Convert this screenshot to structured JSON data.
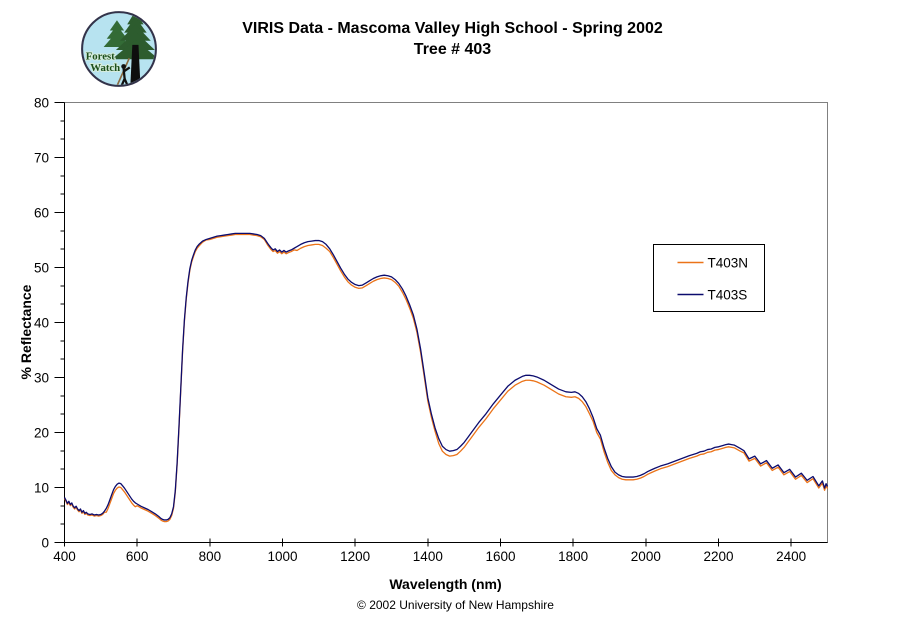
{
  "logo": {
    "line1": "Forest",
    "line2": "Watch"
  },
  "footer": {
    "copyright": "© 2002 University of New Hampshire"
  },
  "chart_data": {
    "type": "line",
    "title": "VIRIS Data - Mascoma Valley High School - Spring 2002",
    "subtitle": "Tree # 403",
    "xlabel": "Wavelength (nm)",
    "ylabel": "% Reflectance",
    "xlim": [
      400,
      2500
    ],
    "ylim": [
      0,
      80
    ],
    "x_ticks": [
      400,
      600,
      800,
      1000,
      1200,
      1400,
      1600,
      1800,
      2000,
      2200,
      2400
    ],
    "y_ticks": [
      0,
      10,
      20,
      30,
      40,
      50,
      60,
      70,
      80
    ],
    "grid": false,
    "legend_position": "middle-right",
    "x": [
      400,
      404,
      408,
      412,
      416,
      420,
      424,
      428,
      432,
      436,
      440,
      444,
      448,
      452,
      456,
      460,
      464,
      470,
      476,
      482,
      488,
      494,
      500,
      505,
      510,
      515,
      520,
      525,
      530,
      535,
      540,
      545,
      550,
      555,
      560,
      565,
      570,
      575,
      580,
      585,
      590,
      595,
      600,
      610,
      620,
      630,
      640,
      650,
      660,
      665,
      670,
      675,
      680,
      685,
      690,
      695,
      700,
      705,
      710,
      715,
      720,
      725,
      730,
      735,
      740,
      745,
      750,
      755,
      760,
      765,
      770,
      780,
      790,
      800,
      810,
      820,
      830,
      840,
      850,
      860,
      870,
      880,
      890,
      900,
      910,
      920,
      930,
      940,
      950,
      960,
      968,
      974,
      980,
      986,
      992,
      998,
      1004,
      1010,
      1016,
      1024,
      1032,
      1040,
      1050,
      1060,
      1070,
      1080,
      1090,
      1100,
      1110,
      1120,
      1130,
      1140,
      1150,
      1160,
      1170,
      1180,
      1190,
      1200,
      1210,
      1220,
      1230,
      1240,
      1250,
      1260,
      1270,
      1280,
      1290,
      1300,
      1310,
      1320,
      1330,
      1340,
      1350,
      1360,
      1370,
      1380,
      1390,
      1400,
      1410,
      1420,
      1430,
      1440,
      1450,
      1460,
      1470,
      1480,
      1490,
      1500,
      1510,
      1520,
      1540,
      1560,
      1580,
      1600,
      1620,
      1640,
      1660,
      1670,
      1680,
      1690,
      1700,
      1720,
      1740,
      1760,
      1780,
      1795,
      1805,
      1815,
      1825,
      1835,
      1845,
      1855,
      1865,
      1875,
      1885,
      1895,
      1905,
      1915,
      1925,
      1935,
      1945,
      1955,
      1965,
      1975,
      1985,
      1995,
      2005,
      2015,
      2025,
      2040,
      2060,
      2080,
      2100,
      2120,
      2140,
      2150,
      2160,
      2170,
      2180,
      2190,
      2200,
      2210,
      2220,
      2228,
      2236,
      2244,
      2252,
      2260,
      2270,
      2284,
      2300,
      2316,
      2332,
      2348,
      2364,
      2380,
      2396,
      2412,
      2428,
      2444,
      2460,
      2476,
      2486,
      2492,
      2496,
      2500
    ],
    "series": [
      {
        "name": "T403N",
        "color": "#EB7318",
        "values": [
          8.0,
          7.5,
          6.9,
          7.3,
          6.7,
          7.0,
          6.4,
          6.1,
          6.4,
          5.9,
          5.6,
          5.9,
          5.3,
          5.6,
          5.1,
          5.3,
          5.0,
          4.9,
          5.0,
          4.8,
          4.9,
          4.8,
          4.9,
          5.1,
          5.5,
          5.5,
          6.2,
          7.1,
          8.0,
          8.9,
          9.5,
          9.9,
          10.1,
          10.0,
          9.6,
          9.2,
          8.7,
          8.2,
          7.7,
          7.2,
          6.8,
          6.5,
          6.7,
          6.3,
          6.0,
          5.7,
          5.3,
          4.9,
          4.4,
          4.1,
          3.9,
          3.8,
          3.8,
          3.9,
          4.2,
          4.9,
          6.2,
          9.2,
          14.2,
          20.7,
          27.7,
          34.7,
          40.2,
          44.2,
          47.2,
          49.5,
          51.0,
          52.0,
          52.9,
          53.5,
          53.9,
          54.6,
          55.0,
          55.1,
          55.3,
          55.5,
          55.6,
          55.7,
          55.8,
          55.9,
          56.0,
          56.0,
          56.0,
          56.0,
          56.0,
          55.9,
          55.8,
          55.6,
          55.1,
          54.0,
          53.3,
          52.9,
          53.1,
          52.6,
          52.9,
          52.5,
          52.8,
          52.5,
          52.7,
          52.9,
          53.2,
          53.1,
          53.5,
          53.8,
          54.0,
          54.1,
          54.2,
          54.2,
          54.0,
          53.5,
          52.9,
          51.8,
          50.6,
          49.4,
          48.3,
          47.4,
          46.8,
          46.4,
          46.2,
          46.3,
          46.7,
          47.1,
          47.5,
          47.8,
          48.0,
          48.1,
          48.0,
          47.8,
          47.3,
          46.6,
          45.5,
          44.2,
          42.6,
          40.8,
          38.2,
          34.6,
          30.2,
          25.7,
          22.7,
          20.2,
          18.0,
          16.6,
          16.0,
          15.7,
          15.8,
          16.0,
          16.6,
          17.3,
          18.2,
          19.1,
          20.9,
          22.5,
          24.3,
          25.9,
          27.5,
          28.6,
          29.3,
          29.5,
          29.5,
          29.4,
          29.2,
          28.6,
          27.8,
          27.0,
          26.5,
          26.4,
          26.5,
          26.2,
          25.6,
          24.7,
          23.4,
          22.0,
          20.0,
          18.8,
          16.5,
          14.6,
          13.1,
          12.3,
          11.8,
          11.5,
          11.4,
          11.4,
          11.4,
          11.5,
          11.7,
          12.0,
          12.4,
          12.7,
          13.0,
          13.4,
          13.8,
          14.3,
          14.8,
          15.3,
          15.7,
          16.0,
          16.1,
          16.4,
          16.5,
          16.8,
          16.9,
          17.1,
          17.3,
          17.4,
          17.3,
          17.2,
          16.9,
          16.6,
          16.3,
          14.8,
          15.3,
          13.9,
          14.5,
          13.1,
          13.7,
          12.3,
          12.9,
          11.5,
          12.2,
          10.9,
          11.6,
          9.9,
          10.8,
          9.5,
          10.3,
          9.8
        ]
      },
      {
        "name": "T403S",
        "color": "#0C0C6E",
        "values": [
          8.2,
          7.7,
          7.1,
          7.5,
          6.9,
          7.2,
          6.6,
          6.3,
          6.6,
          6.1,
          5.8,
          6.1,
          5.5,
          5.8,
          5.3,
          5.5,
          5.2,
          5.1,
          5.2,
          5.0,
          5.1,
          5.0,
          5.1,
          5.3,
          5.7,
          6.2,
          6.9,
          7.8,
          8.7,
          9.6,
          10.2,
          10.6,
          10.8,
          10.7,
          10.3,
          9.9,
          9.4,
          8.9,
          8.4,
          7.9,
          7.5,
          7.2,
          7.0,
          6.6,
          6.3,
          6.0,
          5.6,
          5.2,
          4.7,
          4.4,
          4.2,
          4.1,
          4.1,
          4.2,
          4.5,
          5.2,
          6.5,
          9.5,
          14.5,
          21.0,
          28.0,
          35.0,
          40.5,
          44.5,
          47.5,
          49.8,
          51.3,
          52.3,
          53.2,
          53.8,
          54.2,
          54.8,
          55.1,
          55.3,
          55.5,
          55.7,
          55.8,
          55.9,
          56.0,
          56.1,
          56.2,
          56.2,
          56.2,
          56.2,
          56.2,
          56.1,
          56.0,
          55.8,
          55.3,
          54.3,
          53.6,
          53.2,
          53.4,
          52.9,
          53.2,
          52.8,
          53.1,
          52.8,
          53.0,
          53.2,
          53.5,
          53.8,
          54.2,
          54.5,
          54.7,
          54.8,
          54.9,
          54.9,
          54.7,
          54.2,
          53.4,
          52.3,
          51.1,
          49.9,
          48.8,
          47.9,
          47.3,
          46.9,
          46.7,
          46.8,
          47.2,
          47.6,
          48.0,
          48.3,
          48.5,
          48.6,
          48.5,
          48.3,
          47.8,
          47.1,
          46.1,
          44.8,
          43.2,
          41.4,
          38.8,
          35.2,
          30.8,
          26.3,
          23.3,
          20.8,
          18.9,
          17.5,
          16.9,
          16.6,
          16.7,
          16.9,
          17.5,
          18.2,
          19.1,
          20.0,
          21.8,
          23.4,
          25.2,
          26.8,
          28.4,
          29.5,
          30.2,
          30.4,
          30.4,
          30.3,
          30.1,
          29.5,
          28.7,
          27.9,
          27.4,
          27.3,
          27.4,
          27.1,
          26.5,
          25.6,
          24.3,
          22.7,
          20.7,
          19.5,
          17.2,
          15.3,
          13.8,
          12.8,
          12.3,
          12.0,
          11.9,
          11.9,
          11.9,
          12.0,
          12.2,
          12.5,
          12.9,
          13.2,
          13.5,
          13.9,
          14.3,
          14.8,
          15.3,
          15.8,
          16.2,
          16.5,
          16.6,
          16.9,
          17.0,
          17.3,
          17.4,
          17.6,
          17.8,
          17.9,
          17.8,
          17.7,
          17.4,
          17.1,
          16.7,
          15.2,
          15.7,
          14.3,
          14.9,
          13.5,
          14.1,
          12.7,
          13.3,
          11.9,
          12.6,
          11.3,
          12.0,
          10.3,
          11.2,
          9.9,
          10.7,
          10.2
        ]
      }
    ]
  }
}
